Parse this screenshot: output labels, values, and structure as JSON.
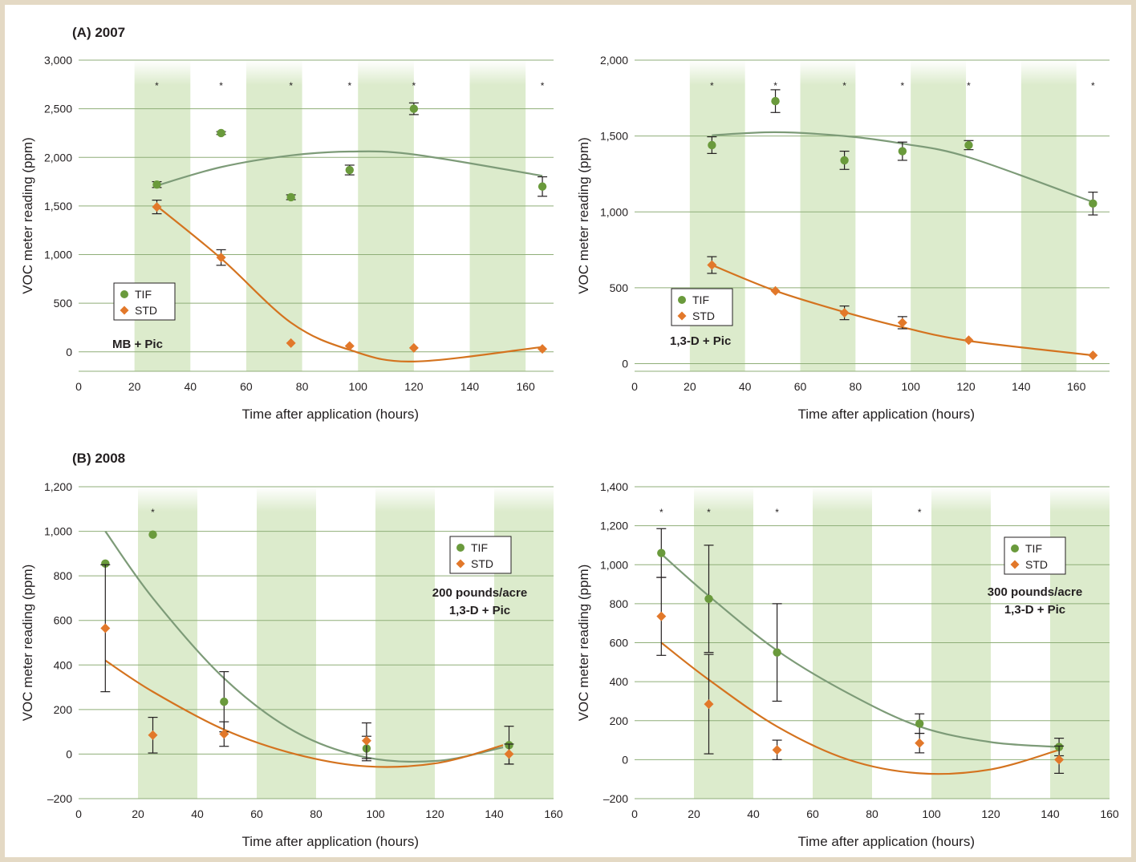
{
  "sections": [
    {
      "label": "(A) 2007"
    },
    {
      "label": "(B) 2008"
    }
  ],
  "colors": {
    "tif": "#6a9a3c",
    "std": "#e2782a",
    "tif_fit": "#7d9b78",
    "std_fit": "#d4731f",
    "band": "#dcebcc",
    "grid": "#8fae78",
    "background": "#e4d9c4"
  },
  "chart_data": [
    {
      "type": "scatter",
      "section": "(A) 2007",
      "xlabel": "Time after application (hours)",
      "ylabel": "VOC meter reading (ppm)",
      "xlim": [
        0,
        170
      ],
      "ylim": [
        -200,
        3000
      ],
      "xticks": [
        0,
        20,
        40,
        60,
        80,
        100,
        120,
        140,
        160
      ],
      "xtick_labels": [
        "0",
        "20",
        "40",
        "60",
        "80",
        "100",
        "120",
        "140",
        "160"
      ],
      "yticks": [
        0,
        500,
        1000,
        1500,
        2000,
        2500,
        3000
      ],
      "ytick_labels": [
        "0",
        "500",
        "1,000",
        "1,500",
        "2,000",
        "2,500",
        "3,000"
      ],
      "bands": [
        [
          20,
          40
        ],
        [
          60,
          80
        ],
        [
          100,
          120
        ],
        [
          140,
          160
        ]
      ],
      "annotation": "MB + Pic",
      "legend": {
        "labels": [
          "TIF",
          "STD"
        ],
        "position": "lower-left"
      },
      "significance": {
        "marker": "*",
        "x": [
          28,
          51,
          76,
          97,
          120,
          166
        ]
      },
      "series": [
        {
          "name": "TIF",
          "x": [
            28,
            51,
            76,
            97,
            120,
            166
          ],
          "y": [
            1720,
            2250,
            1590,
            1870,
            2500,
            1700
          ],
          "err": [
            30,
            15,
            25,
            50,
            60,
            100
          ],
          "fit": [
            1710,
            1900,
            2020,
            2060,
            2030,
            1810
          ]
        },
        {
          "name": "STD",
          "x": [
            28,
            51,
            76,
            97,
            120,
            166
          ],
          "y": [
            1490,
            970,
            90,
            60,
            40,
            30
          ],
          "err": [
            70,
            80,
            0,
            0,
            0,
            0
          ],
          "fit": [
            1500,
            960,
            300,
            20,
            -100,
            50
          ]
        }
      ]
    },
    {
      "type": "scatter",
      "section": "(A) 2007",
      "xlabel": "Time after application (hours)",
      "ylabel": "VOC meter reading (ppm)",
      "xlim": [
        0,
        172
      ],
      "ylim": [
        -50,
        2000
      ],
      "xticks": [
        0,
        20,
        40,
        60,
        80,
        100,
        120,
        140,
        160
      ],
      "xtick_labels": [
        "0",
        "20",
        "40",
        "60",
        "80",
        "100",
        "120",
        "140",
        "160"
      ],
      "yticks": [
        0,
        500,
        1000,
        1500,
        2000
      ],
      "ytick_labels": [
        "0",
        "500",
        "1,000",
        "1,500",
        "2,000"
      ],
      "bands": [
        [
          20,
          40
        ],
        [
          60,
          80
        ],
        [
          100,
          120
        ],
        [
          140,
          160
        ]
      ],
      "annotation": "1,3-D + Pic",
      "legend": {
        "labels": [
          "TIF",
          "STD"
        ],
        "position": "lower-left"
      },
      "significance": {
        "marker": "*",
        "x": [
          28,
          51,
          76,
          97,
          121,
          166
        ]
      },
      "series": [
        {
          "name": "TIF",
          "x": [
            28,
            51,
            76,
            97,
            121,
            166
          ],
          "y": [
            1440,
            1730,
            1340,
            1400,
            1440,
            1055
          ],
          "err": [
            55,
            75,
            60,
            60,
            30,
            75
          ],
          "fit": [
            1505,
            1525,
            1500,
            1450,
            1360,
            1065
          ]
        },
        {
          "name": "STD",
          "x": [
            28,
            51,
            76,
            97,
            121,
            166
          ],
          "y": [
            650,
            480,
            335,
            270,
            155,
            55
          ],
          "err": [
            55,
            0,
            45,
            40,
            0,
            0
          ],
          "fit": [
            650,
            480,
            340,
            240,
            150,
            55
          ]
        }
      ]
    },
    {
      "type": "scatter",
      "section": "(B) 2008",
      "xlabel": "Time after application (hours)",
      "ylabel": "VOC meter reading (ppm)",
      "xlim": [
        0,
        160
      ],
      "ylim": [
        -200,
        1200
      ],
      "xticks": [
        0,
        20,
        40,
        60,
        80,
        100,
        120,
        140,
        160
      ],
      "xtick_labels": [
        "0",
        "20",
        "40",
        "60",
        "80",
        "100",
        "120",
        "140",
        "160"
      ],
      "yticks": [
        -200,
        0,
        200,
        400,
        600,
        800,
        1000,
        1200
      ],
      "ytick_labels": [
        "–200",
        "0",
        "200",
        "400",
        "600",
        "800",
        "1,000",
        "1,200"
      ],
      "bands": [
        [
          20,
          40
        ],
        [
          60,
          80
        ],
        [
          100,
          120
        ],
        [
          140,
          160
        ]
      ],
      "annotation": [
        "200 pounds/acre",
        "1,3-D + Pic"
      ],
      "legend": {
        "labels": [
          "TIF",
          "STD"
        ],
        "position": "upper-right"
      },
      "significance": {
        "marker": "*",
        "x": [
          25
        ]
      },
      "series": [
        {
          "name": "TIF",
          "x": [
            9,
            25,
            49,
            97,
            145
          ],
          "y": [
            855,
            985,
            235,
            25,
            40
          ],
          "err": [
            0,
            0,
            135,
            55,
            85
          ],
          "fit_x": [
            9,
            25,
            49,
            73,
            97,
            121,
            143
          ],
          "fit": [
            1000,
            700,
            340,
            100,
            -15,
            -30,
            30
          ]
        },
        {
          "name": "STD",
          "x": [
            9,
            25,
            49,
            97,
            145
          ],
          "y": [
            565,
            85,
            90,
            60,
            0
          ],
          "err": [
            285,
            80,
            55,
            80,
            45
          ],
          "fit_x": [
            9,
            25,
            49,
            73,
            97,
            121,
            143
          ],
          "fit": [
            420,
            280,
            110,
            0,
            -55,
            -40,
            40
          ]
        }
      ]
    },
    {
      "type": "scatter",
      "section": "(B) 2008",
      "xlabel": "Time after application (hours)",
      "ylabel": "VOC meter reading (ppm)",
      "xlim": [
        0,
        160
      ],
      "ylim": [
        -200,
        1400
      ],
      "xticks": [
        0,
        20,
        40,
        60,
        80,
        100,
        120,
        140,
        160
      ],
      "xtick_labels": [
        "0",
        "20",
        "40",
        "60",
        "80",
        "100",
        "120",
        "140",
        "160"
      ],
      "yticks": [
        -200,
        0,
        200,
        400,
        600,
        800,
        1000,
        1200,
        1400
      ],
      "ytick_labels": [
        "–200",
        "0",
        "200",
        "400",
        "600",
        "800",
        "1,000",
        "1,200",
        "1,400"
      ],
      "bands": [
        [
          20,
          40
        ],
        [
          60,
          80
        ],
        [
          100,
          120
        ],
        [
          140,
          160
        ]
      ],
      "annotation": [
        "300 pounds/acre",
        "1,3-D + Pic"
      ],
      "legend": {
        "labels": [
          "TIF",
          "STD"
        ],
        "position": "upper-right"
      },
      "significance": {
        "marker": "*",
        "x": [
          9,
          25,
          48,
          96
        ]
      },
      "series": [
        {
          "name": "TIF",
          "x": [
            9,
            25,
            48,
            96,
            143
          ],
          "y": [
            1060,
            825,
            550,
            185,
            65
          ],
          "err": [
            125,
            275,
            250,
            50,
            45
          ],
          "fit_x": [
            9,
            25,
            48,
            72,
            96,
            120,
            143
          ],
          "fit": [
            1055,
            840,
            560,
            340,
            170,
            90,
            65
          ]
        },
        {
          "name": "STD",
          "x": [
            9,
            25,
            48,
            96,
            143
          ],
          "y": [
            735,
            285,
            50,
            85,
            0
          ],
          "err": [
            200,
            255,
            50,
            50,
            70
          ],
          "fit_x": [
            9,
            25,
            48,
            72,
            96,
            120,
            143
          ],
          "fit": [
            600,
            410,
            170,
            0,
            -70,
            -50,
            50
          ]
        }
      ]
    }
  ]
}
